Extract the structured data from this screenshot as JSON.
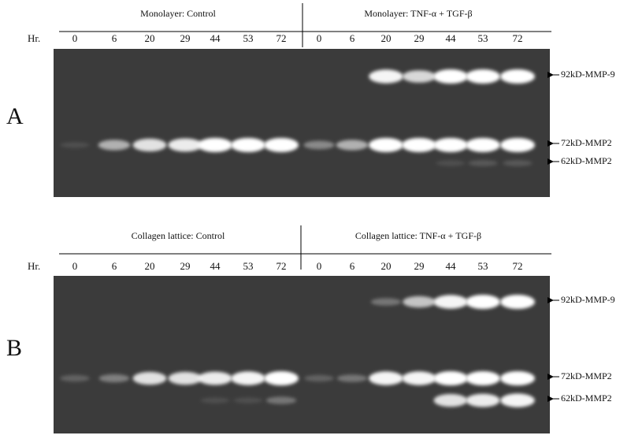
{
  "panels": [
    {
      "label": "A",
      "hour_label": "Hr.",
      "groups": [
        {
          "title": "Monolayer:  Control",
          "hours": [
            0,
            6,
            20,
            29,
            44,
            53,
            72
          ]
        },
        {
          "title": "Monolayer:  TNF-α + TGF-β",
          "hours": [
            0,
            6,
            20,
            29,
            44,
            53,
            72
          ]
        }
      ],
      "bands": [
        "92kD-MMP-9",
        "72kD-MMP2",
        "62kD-MMP2"
      ]
    },
    {
      "label": "B",
      "hour_label": "Hr.",
      "groups": [
        {
          "title": "Collagen lattice:  Control",
          "hours": [
            0,
            6,
            20,
            29,
            44,
            53,
            72
          ]
        },
        {
          "title": "Collagen lattice:  TNF-α + TGF-β",
          "hours": [
            0,
            6,
            20,
            29,
            44,
            53,
            72
          ]
        }
      ],
      "bands": [
        "92kD-MMP-9",
        "72kD-MMP2",
        "62kD-MMP2"
      ]
    }
  ]
}
